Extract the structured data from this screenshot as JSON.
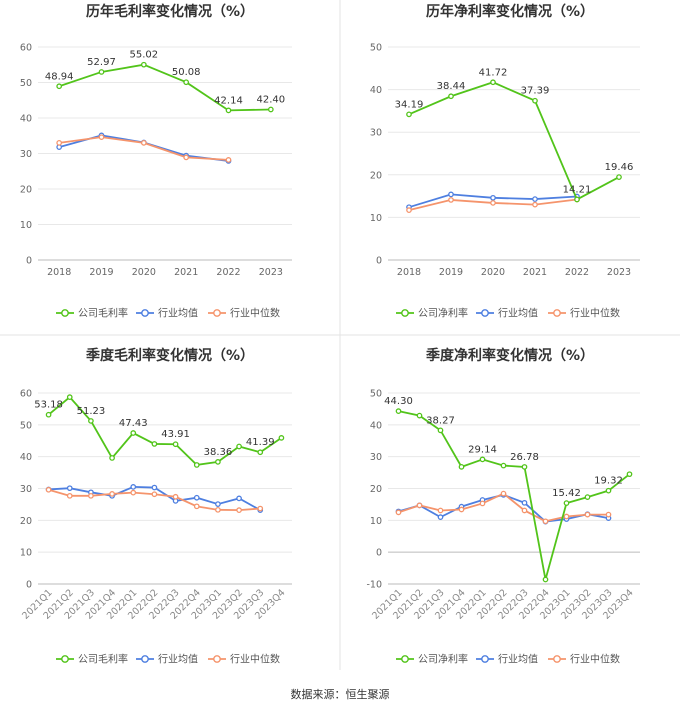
{
  "chart_data": [
    {
      "type": "line",
      "title": "历年毛利率变化情况（%）",
      "categories": [
        "2018",
        "2019",
        "2020",
        "2021",
        "2022",
        "2023"
      ],
      "ylim": [
        0,
        60
      ],
      "yticks": [
        0,
        10,
        20,
        30,
        40,
        50,
        60
      ],
      "grid": true,
      "legend_position": "bottom",
      "series": [
        {
          "name": "公司毛利率",
          "color": "#52c41a",
          "values": [
            48.94,
            52.97,
            55.02,
            50.08,
            42.14,
            42.4
          ],
          "labels": [
            "48.94",
            "52.97",
            "55.02",
            "50.08",
            "42.14",
            "42.40"
          ]
        },
        {
          "name": "行业均值",
          "color": "#4e7fe0",
          "values": [
            31.8,
            35.1,
            33.1,
            29.4,
            27.9,
            null
          ]
        },
        {
          "name": "行业中位数",
          "color": "#f5946c",
          "values": [
            33.0,
            34.6,
            33.0,
            28.9,
            28.2,
            null
          ]
        }
      ]
    },
    {
      "type": "line",
      "title": "历年净利率变化情况（%）",
      "categories": [
        "2018",
        "2019",
        "2020",
        "2021",
        "2022",
        "2023"
      ],
      "ylim": [
        0,
        50
      ],
      "yticks": [
        0,
        10,
        20,
        30,
        40,
        50
      ],
      "grid": true,
      "legend_position": "bottom",
      "series": [
        {
          "name": "公司净利率",
          "color": "#52c41a",
          "values": [
            34.19,
            38.44,
            41.72,
            37.39,
            14.21,
            19.46
          ],
          "labels": [
            "34.19",
            "38.44",
            "41.72",
            "37.39",
            "14.21",
            "19.46"
          ]
        },
        {
          "name": "行业均值",
          "color": "#4e7fe0",
          "values": [
            12.4,
            15.4,
            14.6,
            14.3,
            14.9,
            null
          ]
        },
        {
          "name": "行业中位数",
          "color": "#f5946c",
          "values": [
            11.7,
            14.1,
            13.4,
            13.0,
            14.2,
            null
          ]
        }
      ]
    },
    {
      "type": "line",
      "title": "季度毛利率变化情况（%）",
      "categories": [
        "2021Q1",
        "2021Q2",
        "2021Q3",
        "2021Q4",
        "2022Q1",
        "2022Q2",
        "2022Q3",
        "2022Q4",
        "2023Q1",
        "2023Q2",
        "2023Q3",
        "2023Q4"
      ],
      "ylim": [
        0,
        60
      ],
      "yticks": [
        0,
        10,
        20,
        30,
        40,
        50,
        60
      ],
      "grid": true,
      "legend_position": "bottom",
      "series": [
        {
          "name": "公司毛利率",
          "color": "#52c41a",
          "values": [
            53.18,
            58.7,
            51.23,
            39.6,
            47.43,
            44.0,
            43.91,
            37.4,
            38.36,
            43.2,
            41.39,
            45.9
          ],
          "labels": [
            "53.18",
            "",
            "51.23",
            "",
            "47.43",
            "",
            "43.91",
            "",
            "38.36",
            "",
            "41.39",
            ""
          ]
        },
        {
          "name": "行业均值",
          "color": "#4e7fe0",
          "values": [
            29.7,
            30.1,
            28.8,
            27.7,
            30.5,
            30.3,
            26.1,
            27.1,
            25.1,
            26.9,
            23.2,
            null
          ]
        },
        {
          "name": "行业中位数",
          "color": "#f5946c",
          "values": [
            29.6,
            27.7,
            27.7,
            28.3,
            28.7,
            28.2,
            27.4,
            24.4,
            23.3,
            23.2,
            23.7,
            null
          ]
        }
      ]
    },
    {
      "type": "line",
      "title": "季度净利率变化情况（%）",
      "categories": [
        "2021Q1",
        "2021Q2",
        "2021Q3",
        "2021Q4",
        "2022Q1",
        "2022Q2",
        "2022Q3",
        "2022Q4",
        "2023Q1",
        "2023Q2",
        "2023Q3",
        "2023Q4"
      ],
      "ylim": [
        -10,
        50
      ],
      "yticks": [
        -10,
        0,
        10,
        20,
        30,
        40,
        50
      ],
      "grid": true,
      "legend_position": "bottom",
      "series": [
        {
          "name": "公司净利率",
          "color": "#52c41a",
          "values": [
            44.3,
            42.9,
            38.27,
            26.8,
            29.14,
            27.2,
            26.78,
            -8.6,
            15.42,
            17.3,
            19.32,
            24.5
          ],
          "labels": [
            "44.30",
            "",
            "38.27",
            "",
            "29.14",
            "",
            "26.78",
            "",
            "15.42",
            "",
            "19.32",
            ""
          ]
        },
        {
          "name": "行业均值",
          "color": "#4e7fe0",
          "values": [
            12.8,
            14.7,
            11.0,
            14.3,
            16.4,
            18.0,
            15.5,
            9.6,
            10.4,
            11.9,
            10.7,
            null
          ]
        },
        {
          "name": "行业中位数",
          "color": "#f5946c",
          "values": [
            12.5,
            14.7,
            13.1,
            13.4,
            15.3,
            18.4,
            13.1,
            9.7,
            11.2,
            11.8,
            11.8,
            null
          ]
        }
      ]
    }
  ],
  "source": "数据来源：恒生聚源"
}
